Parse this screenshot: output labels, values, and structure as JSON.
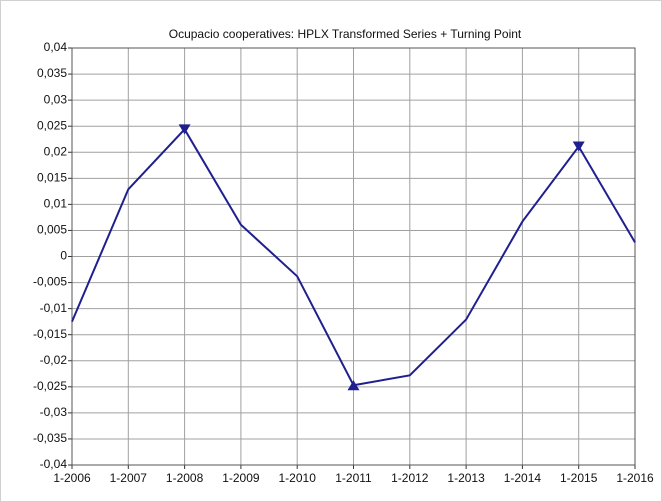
{
  "chart_data": {
    "type": "line",
    "title": "Ocupacio cooperatives: HPLX Transformed Series + Turning Point",
    "categories": [
      "1-2006",
      "1-2007",
      "1-2008",
      "1-2009",
      "1-2010",
      "1-2011",
      "1-2012",
      "1-2013",
      "1-2014",
      "1-2015",
      "1-2016"
    ],
    "series": [
      {
        "color": "#1f1f8f",
        "values": [
          -0.0125,
          0.0129,
          0.0244,
          0.0061,
          -0.0038,
          -0.0247,
          -0.0228,
          -0.0121,
          0.0067,
          0.0211,
          0.0027
        ]
      }
    ],
    "peaks": [
      2,
      9
    ],
    "troughs": [
      5
    ],
    "ylim": [
      -0.04,
      0.04
    ],
    "yticks": [
      {
        "value": -0.04,
        "label": "-0,04"
      },
      {
        "value": -0.035,
        "label": "-0,035"
      },
      {
        "value": -0.03,
        "label": "-0,03"
      },
      {
        "value": -0.025,
        "label": "-0,025"
      },
      {
        "value": -0.02,
        "label": "-0,02"
      },
      {
        "value": -0.015,
        "label": "-0,015"
      },
      {
        "value": -0.01,
        "label": "-0,01"
      },
      {
        "value": -0.005,
        "label": "-0,005"
      },
      0,
      {
        "value": 0.005,
        "label": "0,005"
      },
      {
        "value": 0.01,
        "label": "0,01"
      },
      {
        "value": 0.015,
        "label": "0,015"
      },
      {
        "value": 0.02,
        "label": "0,02"
      },
      {
        "value": 0.025,
        "label": "0,025"
      },
      {
        "value": 0.03,
        "label": "0,03"
      },
      {
        "value": 0.035,
        "label": "0,035"
      },
      {
        "value": 0.04,
        "label": "0,04"
      }
    ],
    "grid": true
  }
}
